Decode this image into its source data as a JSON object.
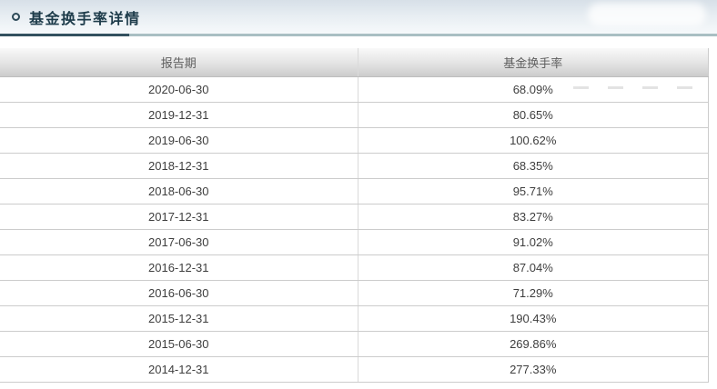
{
  "header": {
    "title": "基金换手率详情"
  },
  "table": {
    "columns": [
      "报告期",
      "基金换手率"
    ],
    "rows": [
      {
        "period": "2020-06-30",
        "rate": "68.09%"
      },
      {
        "period": "2019-12-31",
        "rate": "80.65%"
      },
      {
        "period": "2019-06-30",
        "rate": "100.62%"
      },
      {
        "period": "2018-12-31",
        "rate": "68.35%"
      },
      {
        "period": "2018-06-30",
        "rate": "95.71%"
      },
      {
        "period": "2017-12-31",
        "rate": "83.27%"
      },
      {
        "period": "2017-06-30",
        "rate": "91.02%"
      },
      {
        "period": "2016-12-31",
        "rate": "87.04%"
      },
      {
        "period": "2016-06-30",
        "rate": "71.29%"
      },
      {
        "period": "2015-12-31",
        "rate": "190.43%"
      },
      {
        "period": "2015-06-30",
        "rate": "269.86%"
      },
      {
        "period": "2014-12-31",
        "rate": "277.33%"
      }
    ]
  },
  "colors": {
    "banner_gradient_top": "#d7e0e8",
    "banner_gradient_bottom": "#f6f9fb",
    "title_text": "#1d3b4a",
    "rule_dark": "#33515f",
    "rule_light": "#a9bfc3",
    "table_header_text": "#5e5e5e",
    "table_cell_text": "#3e3e3e",
    "row_border": "#cccccc"
  }
}
